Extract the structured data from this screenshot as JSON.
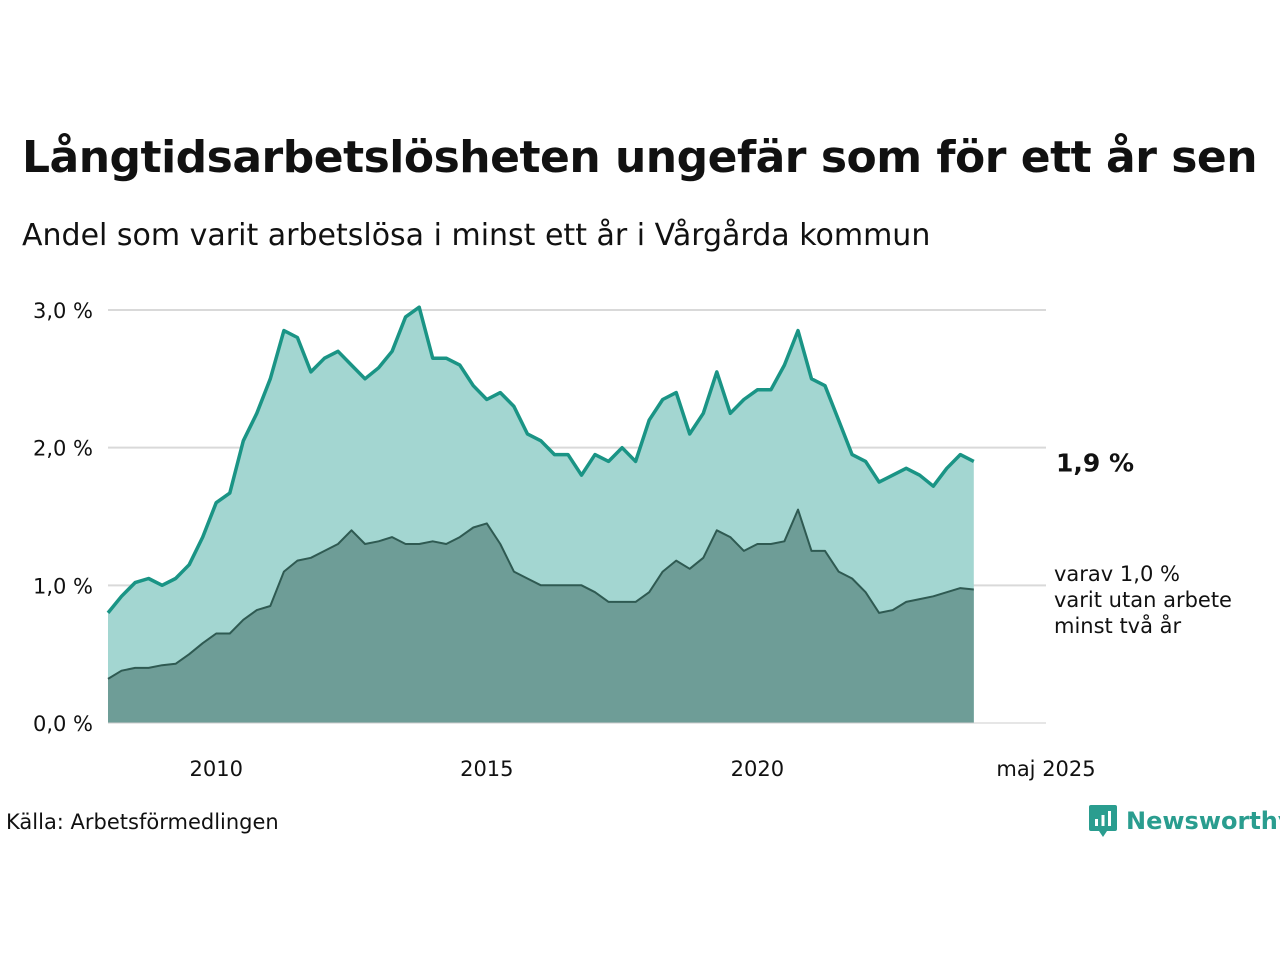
{
  "title": "Långtidsarbetslösheten ungefär som för ett år sen",
  "subtitle": "Andel som varit arbetslösa i minst ett år i Vårgårda kommun",
  "source": "Källa: Arbetsförmedlingen",
  "brand": "Newsworthy",
  "colors": {
    "total_line": "#1a9485",
    "total_fill": "#a3d6d1",
    "long_line": "#2f5a52",
    "long_fill": "#6e9d97",
    "grid": "#d9d9d9",
    "brand": "#2a9d8f"
  },
  "chart_data": {
    "type": "area",
    "x_unit": "month",
    "x_range": [
      "2008-01",
      "2025-05"
    ],
    "ylim": [
      0,
      3.0
    ],
    "y_ticks": [
      "0,0 %",
      "1,0 %",
      "2,0 %",
      "3,0 %"
    ],
    "y_tick_values": [
      0,
      1,
      2,
      3
    ],
    "x_ticks": [
      "2010",
      "2015",
      "2020",
      "maj 2025"
    ],
    "x_tick_dates": [
      "2010-01",
      "2015-01",
      "2020-01",
      "2025-05"
    ],
    "grid": true,
    "series": [
      {
        "key": "total",
        "start": "2008-01",
        "step": "quarter",
        "values": [
          0.8,
          0.92,
          1.02,
          1.05,
          1.0,
          1.05,
          1.15,
          1.35,
          1.6,
          1.67,
          2.05,
          2.25,
          2.5,
          2.85,
          2.8,
          2.55,
          2.65,
          2.7,
          2.6,
          2.5,
          2.58,
          2.7,
          2.95,
          3.02,
          2.65,
          2.65,
          2.6,
          2.45,
          2.35,
          2.4,
          2.3,
          2.1,
          2.05,
          1.95,
          1.95,
          1.8,
          1.95,
          1.9,
          2.0,
          1.9,
          2.2,
          2.35,
          2.4,
          2.1,
          2.25,
          2.55,
          2.25,
          2.35,
          2.42,
          2.42,
          2.6,
          2.85,
          2.5,
          2.45,
          2.2,
          1.95,
          1.9,
          1.75,
          1.8,
          1.85,
          1.8,
          1.72,
          1.85,
          1.95,
          1.9
        ]
      },
      {
        "key": "long",
        "start": "2008-01",
        "step": "quarter",
        "values": [
          0.32,
          0.38,
          0.4,
          0.4,
          0.42,
          0.43,
          0.5,
          0.58,
          0.65,
          0.65,
          0.75,
          0.82,
          0.85,
          1.1,
          1.18,
          1.2,
          1.25,
          1.3,
          1.4,
          1.3,
          1.32,
          1.35,
          1.3,
          1.3,
          1.32,
          1.3,
          1.35,
          1.42,
          1.45,
          1.3,
          1.1,
          1.05,
          1.0,
          1.0,
          1.0,
          1.0,
          0.95,
          0.88,
          0.88,
          0.88,
          0.95,
          1.1,
          1.18,
          1.12,
          1.2,
          1.4,
          1.35,
          1.25,
          1.3,
          1.3,
          1.32,
          1.55,
          1.25,
          1.25,
          1.1,
          1.05,
          0.95,
          0.8,
          0.82,
          0.88,
          0.9,
          0.92,
          0.95,
          0.98,
          0.97
        ]
      }
    ],
    "end_labels": {
      "total": "1,9 %",
      "long_lines": [
        "varav 1,0 %",
        "varit utan arbete",
        "minst två år"
      ]
    }
  }
}
